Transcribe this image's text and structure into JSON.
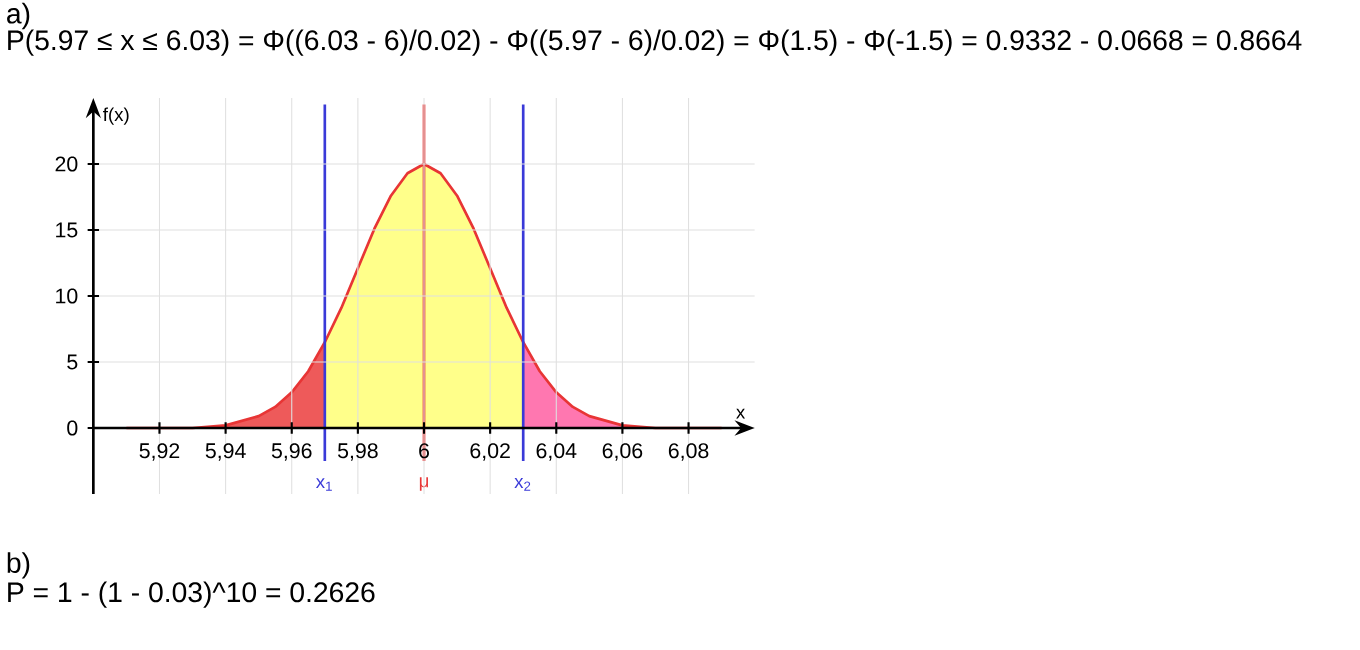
{
  "chart_data": {
    "type": "area",
    "xlabel": "x",
    "ylabel": "f(x)",
    "xlim": [
      5.9,
      6.1
    ],
    "ylim": [
      -5,
      25
    ],
    "xticks": [
      {
        "value": 5.92,
        "label": "5,92"
      },
      {
        "value": 5.94,
        "label": "5,94"
      },
      {
        "value": 5.96,
        "label": "5,96"
      },
      {
        "value": 5.98,
        "label": "5,98"
      },
      {
        "value": 6,
        "label": "6"
      },
      {
        "value": 6.02,
        "label": "6,02"
      },
      {
        "value": 6.04,
        "label": "6,04"
      },
      {
        "value": 6.06,
        "label": "6,06"
      },
      {
        "value": 6.08,
        "label": "6,08"
      }
    ],
    "yticks": [
      0,
      5,
      10,
      15,
      20
    ],
    "grid": true,
    "series": [
      {
        "color": "#ee5a5a",
        "x": [
          5.91,
          5.92,
          5.93,
          5.94,
          5.95,
          5.955,
          5.96,
          5.965,
          5.97
        ],
        "values": [
          0,
          0,
          0,
          0.2,
          0.9,
          1.6,
          2.7,
          4.3,
          6.5
        ]
      },
      {
        "color": "#ffff8a",
        "x": [
          5.97,
          5.975,
          5.98,
          5.985,
          5.99,
          5.995,
          6,
          6.005,
          6.01,
          6.015,
          6.02,
          6.025,
          6.03
        ],
        "values": [
          6.5,
          9.1,
          12.1,
          15.1,
          17.6,
          19.3,
          20,
          19.3,
          17.6,
          15.1,
          12.1,
          9.1,
          6.5
        ]
      },
      {
        "color": "#ff77b0",
        "x": [
          6.03,
          6.035,
          6.04,
          6.045,
          6.05,
          6.06,
          6.07,
          6.08,
          6.09
        ],
        "values": [
          6.5,
          4.3,
          2.7,
          1.6,
          0.9,
          0.2,
          0,
          0,
          0
        ]
      },
      {
        "type": "line",
        "color": "#e83535",
        "x": [
          5.91,
          5.92,
          5.93,
          5.94,
          5.95,
          5.955,
          5.96,
          5.965,
          5.97,
          5.975,
          5.98,
          5.985,
          5.99,
          5.995,
          6,
          6.005,
          6.01,
          6.015,
          6.02,
          6.025,
          6.03,
          6.035,
          6.04,
          6.045,
          6.05,
          6.06,
          6.07,
          6.08,
          6.09
        ],
        "values": [
          0,
          0,
          0,
          0.2,
          0.9,
          1.6,
          2.7,
          4.3,
          6.5,
          9.1,
          12.1,
          15.1,
          17.6,
          19.3,
          20,
          19.3,
          17.6,
          15.1,
          12.1,
          9.1,
          6.5,
          4.3,
          2.7,
          1.6,
          0.9,
          0.2,
          0,
          0,
          0
        ]
      }
    ],
    "ref_lines": [
      {
        "axis": "x",
        "value": 5.97,
        "label": "x$_{1}$",
        "color": "#3a3ad8"
      },
      {
        "axis": "x",
        "value": 6,
        "label": "μ",
        "color": "#e83535"
      },
      {
        "axis": "x",
        "value": 6.03,
        "label": "x$_{2}$",
        "color": "#3a3ad8"
      }
    ],
    "annotations": [
      "a)",
      "P(5.97 ≤ x ≤ 6.03) = Φ((6.03 - 6)/0.02) - Φ((5.97 - 6)/0.02) = Φ(1.5) - Φ(-1.5) = 0.9332 - 0.0668 = 0.8664",
      "b)",
      "P = 1 - (1 - 0.03)^10 = 0.2626"
    ]
  }
}
